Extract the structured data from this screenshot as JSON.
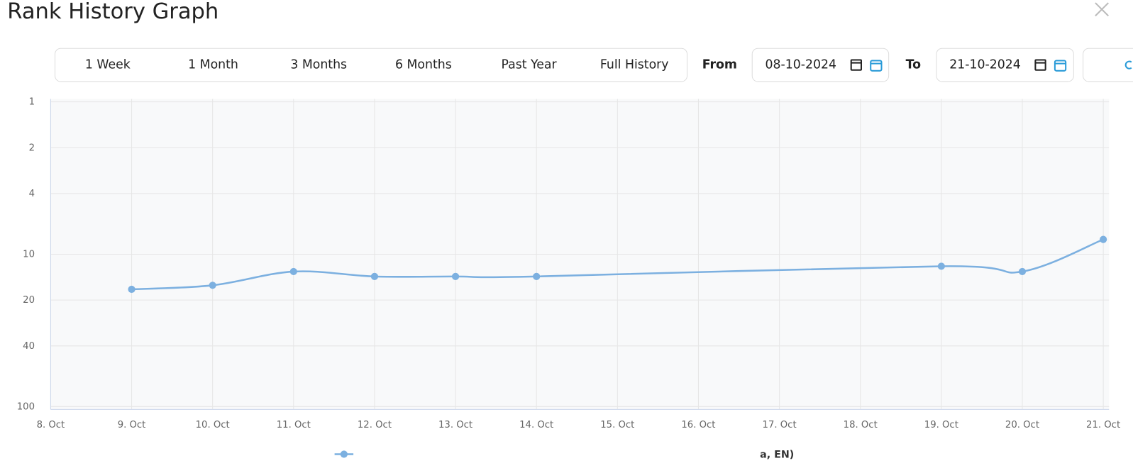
{
  "header": {
    "title": "Rank History Graph"
  },
  "range_buttons": [
    "1 Week",
    "1 Month",
    "3 Months",
    "6 Months",
    "Past Year",
    "Full History"
  ],
  "date_range": {
    "from_label": "From",
    "from": "08-10-2024",
    "to_label": "To",
    "to": "21-10-2024"
  },
  "chart_data": {
    "type": "line",
    "categories": [
      "8. Oct",
      "9. Oct",
      "10. Oct",
      "11. Oct",
      "12. Oct",
      "13. Oct",
      "14. Oct",
      "15. Oct",
      "16. Oct",
      "17. Oct",
      "18. Oct",
      "19. Oct",
      "20. Oct",
      "21. Oct"
    ],
    "series": [
      {
        "name": "a, EN)",
        "color": "#7cb0e0",
        "x": [
          "9. Oct",
          "10. Oct",
          "11. Oct",
          "12. Oct",
          "13. Oct",
          "14. Oct",
          "19. Oct",
          "20. Oct",
          "21. Oct"
        ],
        "values": [
          17,
          16,
          13,
          14,
          14,
          14,
          12,
          13,
          8
        ]
      }
    ],
    "ylim": [
      1,
      100
    ],
    "yticks": [
      1,
      2,
      4,
      10,
      20,
      40,
      100
    ],
    "log_scale": true,
    "y_reversed": true,
    "grid": true
  }
}
